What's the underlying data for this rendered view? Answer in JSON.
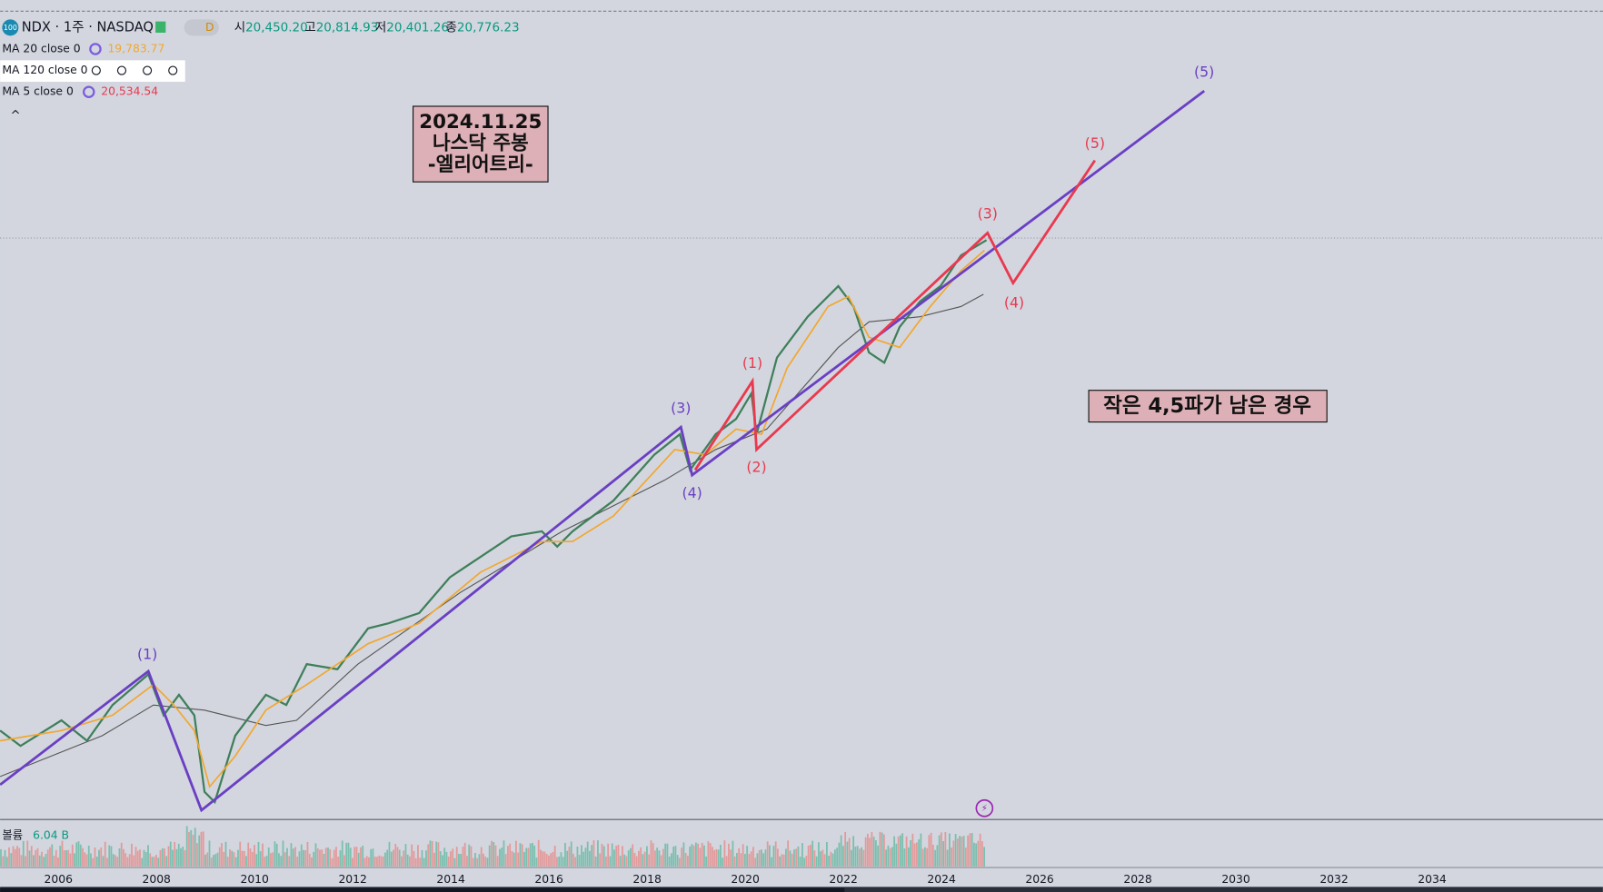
{
  "header": {
    "badge": "100",
    "symbol": "NDX · 1주 · NASDAQ",
    "interval_badge": "D",
    "ohlc": [
      {
        "label": "시",
        "value": "20,450.20"
      },
      {
        "label": "고",
        "value": "20,814.93"
      },
      {
        "label": "저",
        "value": "20,401.26"
      },
      {
        "label": "종",
        "value": "20,776.23"
      }
    ]
  },
  "indicators": [
    {
      "name": "MA 20 close 0",
      "value": "19,783.77"
    },
    {
      "name": "MA 120 close 0"
    },
    {
      "name": "MA 5 close 0",
      "value": "20,534.54"
    }
  ],
  "annotation": {
    "lines": [
      "2024.11.25",
      "나스닥 주봉",
      "-엘리어트리-"
    ]
  },
  "note": "작은 4,5파가 남은 경우",
  "wave_labels": {
    "purple": [
      "(1)",
      "(3)",
      "(4)",
      "(5)"
    ],
    "red": [
      "(1)",
      "(2)",
      "(3)",
      "(4)",
      "(5)"
    ]
  },
  "volume": {
    "label": "볼륨",
    "value": "6.04 B"
  },
  "x_axis": {
    "labels": [
      "2006",
      "2008",
      "2010",
      "2012",
      "2014",
      "2016",
      "2018",
      "2020",
      "2022",
      "2024",
      "2026",
      "2028",
      "2030",
      "2032",
      "2034"
    ]
  }
}
